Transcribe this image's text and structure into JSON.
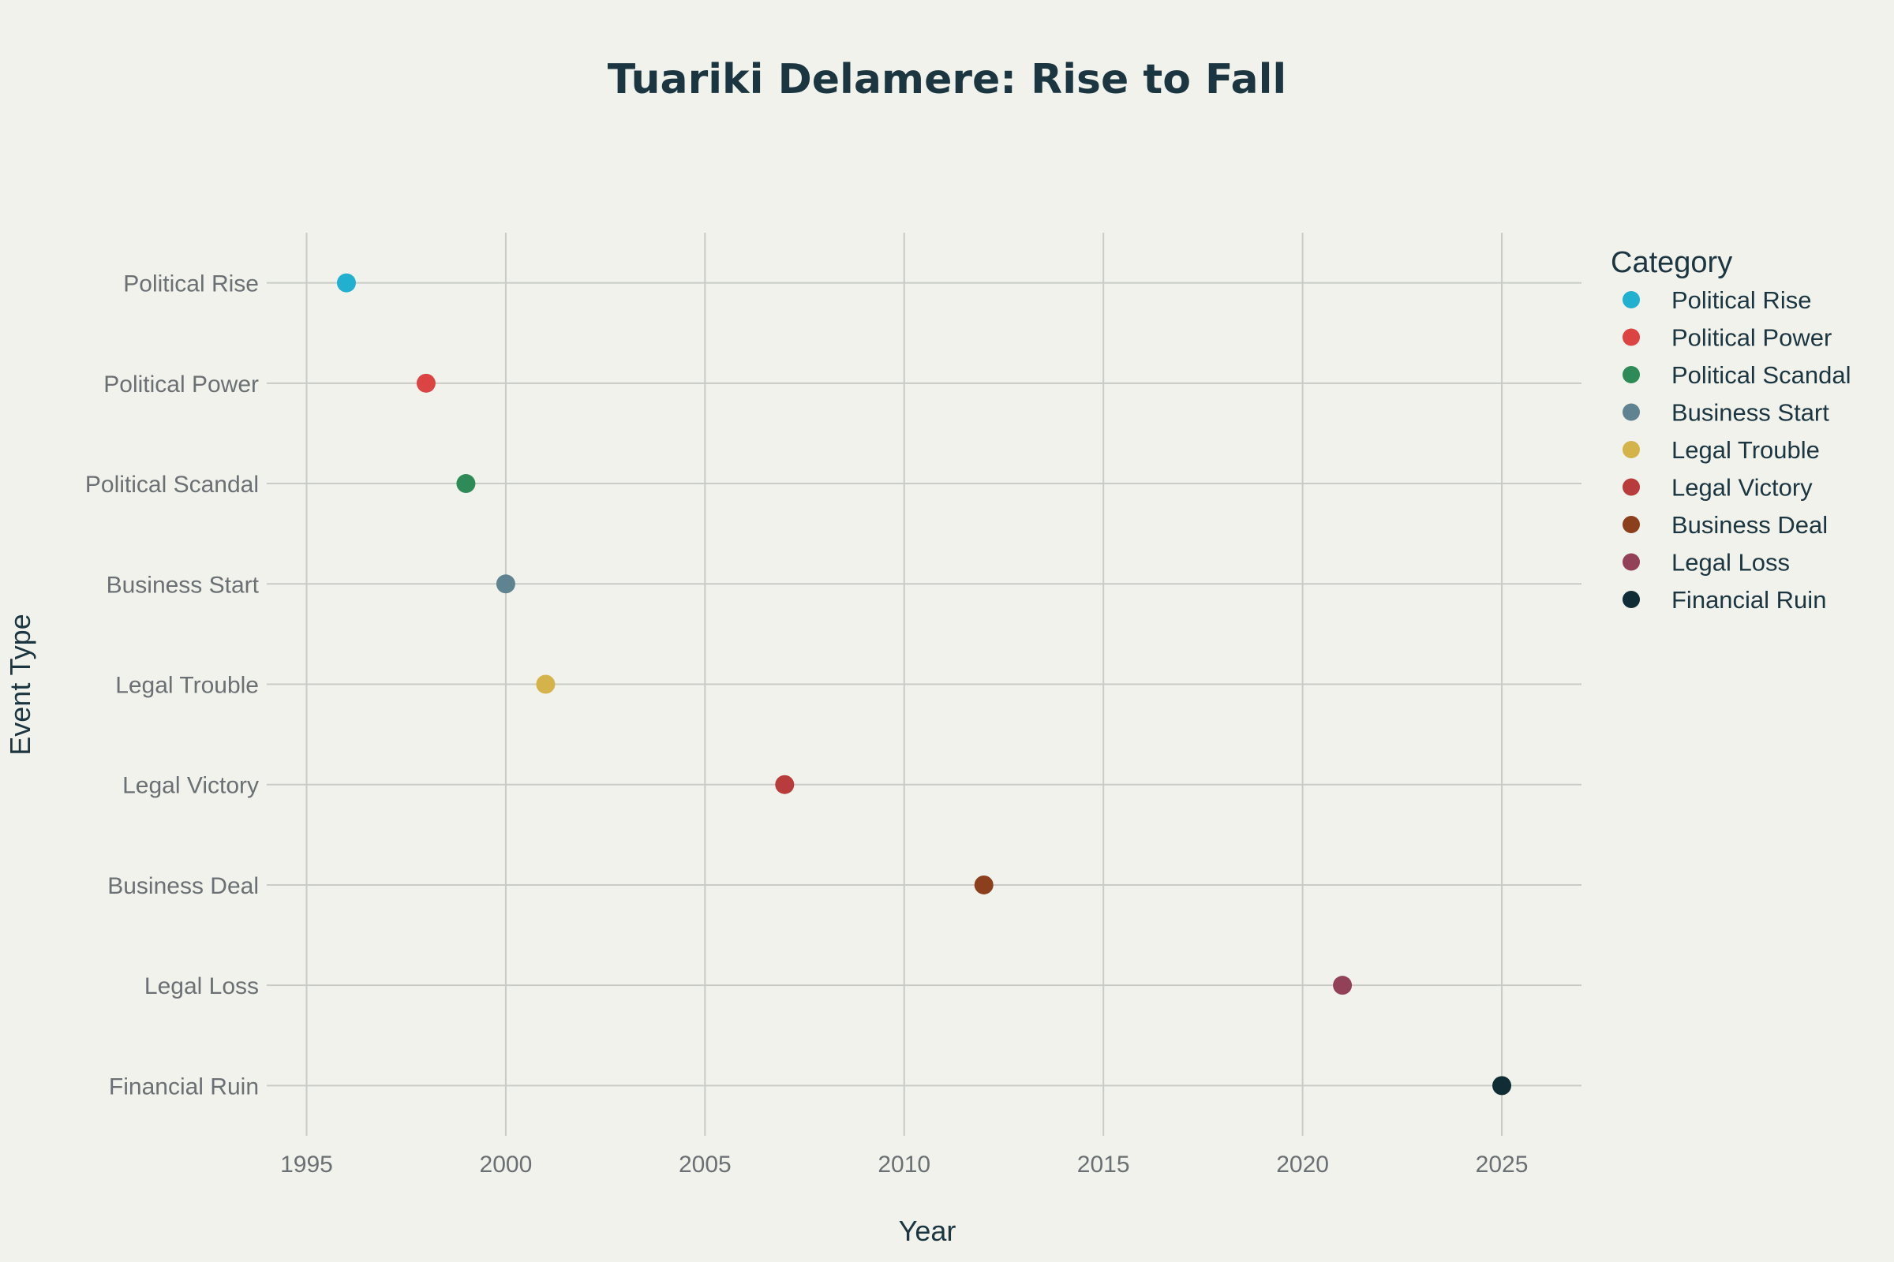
{
  "chart_data": {
    "type": "scatter",
    "title": "Tuariki Delamere: Rise to Fall",
    "xlabel": "Year",
    "ylabel": "Event Type",
    "xlim": [
      1994,
      2027
    ],
    "xticks": [
      1995,
      2000,
      2005,
      2010,
      2015,
      2020,
      2025
    ],
    "categories": [
      "Political Rise",
      "Political Power",
      "Political Scandal",
      "Business Start",
      "Legal Trouble",
      "Legal Victory",
      "Business Deal",
      "Legal Loss",
      "Financial Ruin"
    ],
    "grid": true,
    "legend": {
      "title": "Category",
      "placement": "right-top"
    },
    "series": [
      {
        "name": "Political Rise",
        "color": "#22b0d0",
        "points": [
          {
            "x": 1996,
            "y": "Political Rise"
          }
        ]
      },
      {
        "name": "Political Power",
        "color": "#dc4444",
        "points": [
          {
            "x": 1998,
            "y": "Political Power"
          }
        ]
      },
      {
        "name": "Political Scandal",
        "color": "#2e8b57",
        "points": [
          {
            "x": 1999,
            "y": "Political Scandal"
          }
        ]
      },
      {
        "name": "Business Start",
        "color": "#5f8390",
        "points": [
          {
            "x": 2000,
            "y": "Business Start"
          }
        ]
      },
      {
        "name": "Legal Trouble",
        "color": "#d4b44a",
        "points": [
          {
            "x": 2001,
            "y": "Legal Trouble"
          }
        ]
      },
      {
        "name": "Legal Victory",
        "color": "#b83c3c",
        "points": [
          {
            "x": 2007,
            "y": "Legal Victory"
          }
        ]
      },
      {
        "name": "Business Deal",
        "color": "#8b3f1c",
        "points": [
          {
            "x": 2012,
            "y": "Business Deal"
          }
        ]
      },
      {
        "name": "Legal Loss",
        "color": "#924158",
        "points": [
          {
            "x": 2021,
            "y": "Legal Loss"
          }
        ]
      },
      {
        "name": "Financial Ruin",
        "color": "#102c34",
        "points": [
          {
            "x": 2025,
            "y": "Financial Ruin"
          }
        ]
      }
    ]
  }
}
